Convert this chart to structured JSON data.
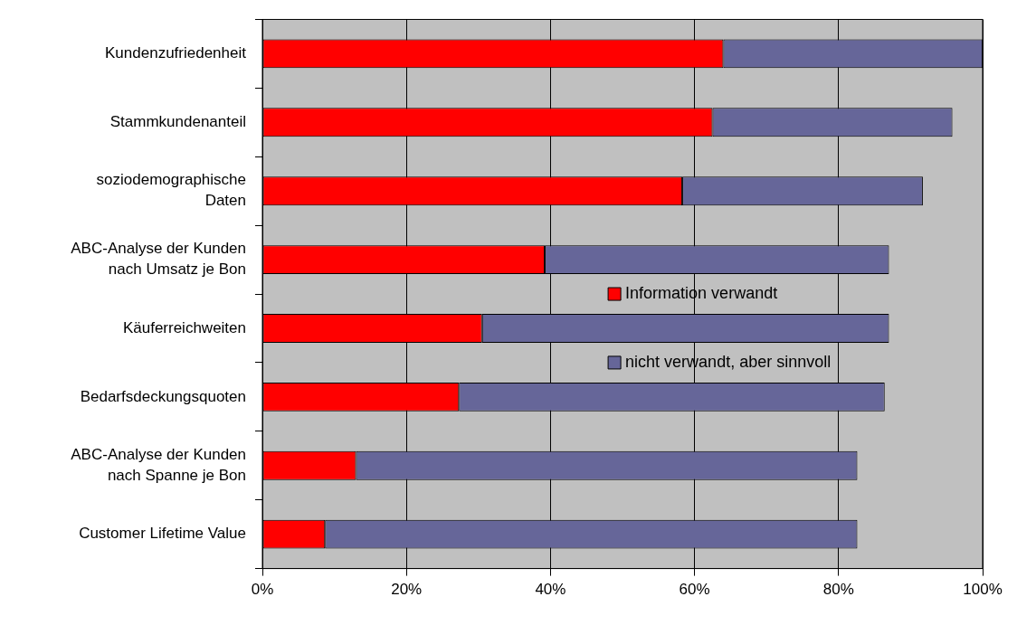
{
  "chart_data": {
    "type": "bar",
    "orientation": "horizontal",
    "stacked": true,
    "categories": [
      "Kundenzufriedenheit",
      "Stammkundenanteil",
      "soziodemographische Daten",
      "ABC-Analyse der Kunden nach Umsatz je Bon",
      "Käuferreichweiten",
      "Bedarfsdeckungsquoten",
      "ABC-Analyse der Kunden nach Spanne je Bon",
      "Customer Lifetime Value"
    ],
    "series": [
      {
        "name": "Information verwandt",
        "color": "#ff0000",
        "values": [
          64,
          62.5,
          58.3,
          39.2,
          30.5,
          27.3,
          13,
          8.7
        ]
      },
      {
        "name": "nicht verwandt, aber sinnvoll",
        "color": "#666699",
        "values": [
          36,
          33.3,
          33.4,
          47.8,
          56.5,
          59.1,
          69.6,
          73.9
        ]
      }
    ],
    "xlim": [
      0,
      100
    ],
    "xticks": [
      {
        "value": 0,
        "label": "0%"
      },
      {
        "value": 20,
        "label": "20%"
      },
      {
        "value": 40,
        "label": "40%"
      },
      {
        "value": 60,
        "label": "60%"
      },
      {
        "value": 80,
        "label": "80%"
      },
      {
        "value": 100,
        "label": "100%"
      }
    ],
    "grid": "x",
    "legend": "right"
  }
}
